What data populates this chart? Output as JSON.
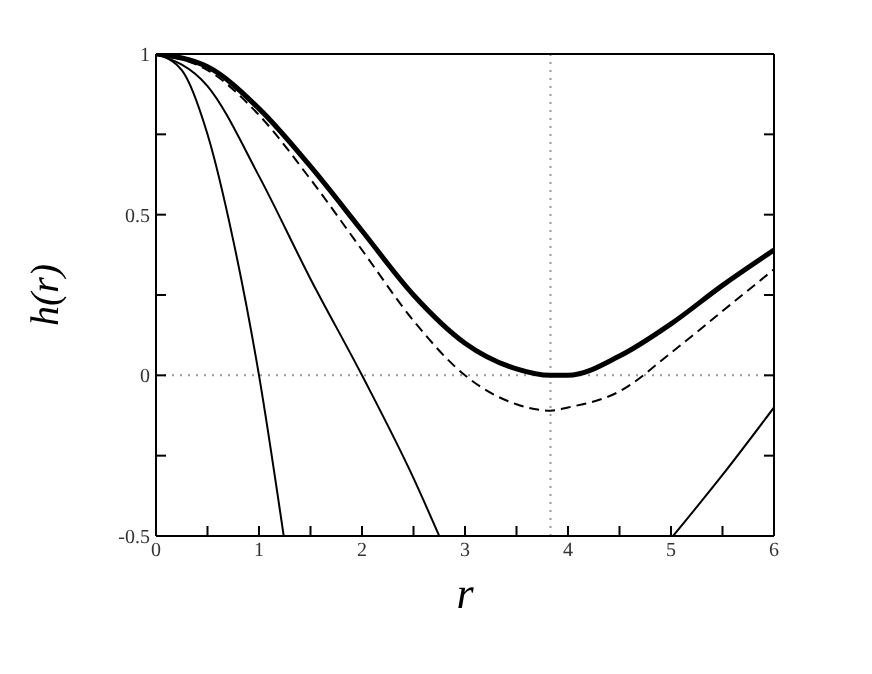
{
  "chart_data": {
    "type": "line",
    "xlabel": "r",
    "ylabel": "h(r)",
    "xlim": [
      0,
      6
    ],
    "xticks": [
      0,
      {
        "value": 0.5,
        "label": null
      },
      1,
      {
        "value": 1.5,
        "label": null
      },
      2,
      {
        "value": 2.5,
        "label": null
      },
      3,
      {
        "value": 3.5,
        "label": null
      },
      4,
      {
        "value": 4.5,
        "label": null
      },
      5,
      {
        "value": 5.5,
        "label": null
      },
      6
    ],
    "ylim": [
      -0.5,
      1
    ],
    "yticks": [
      -0.5,
      {
        "value": -0.25,
        "label": null
      },
      0,
      {
        "value": 0.25,
        "label": null
      },
      0.5,
      {
        "value": 0.75,
        "label": null
      },
      1
    ],
    "marker": "none",
    "ref_lines": [
      {
        "axis": "y",
        "value": 0,
        "color": "#999999",
        "line_style": "dotted"
      },
      {
        "axis": "x",
        "value": 3.83,
        "color": "#999999",
        "line_style": "dotted"
      }
    ],
    "series": [
      {
        "color": "#000000",
        "line_style": "solid",
        "x": [
          0,
          0.5,
          1,
          1.5,
          2,
          2.5,
          3,
          3.5,
          3.83,
          4,
          4.5,
          5,
          5.5,
          6
        ],
        "values": [
          1,
          0.96,
          0.83,
          0.65,
          0.45,
          0.25,
          0.1,
          0.02,
          0,
          0,
          0.06,
          0.16,
          0.28,
          0.39
        ]
      },
      {
        "color": "#000000",
        "line_style": "dashed",
        "x": [
          0,
          0.5,
          1,
          1.5,
          2,
          2.5,
          3,
          3.5,
          3.83,
          4,
          4.5,
          5,
          5.5,
          6
        ],
        "values": [
          1,
          0.95,
          0.81,
          0.61,
          0.39,
          0.17,
          0,
          -0.09,
          -0.11,
          -0.1,
          -0.05,
          0.07,
          0.2,
          0.33
        ]
      },
      {
        "color": "#000000",
        "line_style": "solid",
        "x": [
          0,
          0.25,
          0.5,
          0.75,
          1,
          1.24
        ],
        "values": [
          1,
          0.95,
          0.75,
          0.42,
          0,
          -0.5
        ]
      },
      {
        "color": "#000000",
        "line_style": "solid",
        "x": [
          0,
          0.5,
          1,
          1.5,
          2,
          2.5,
          2.75,
          3.5,
          5.02,
          5.5,
          6
        ],
        "values": [
          1,
          0.9,
          0.62,
          0.3,
          0,
          -0.32,
          -0.5,
          null,
          -0.5,
          -0.31,
          -0.1
        ]
      }
    ]
  }
}
